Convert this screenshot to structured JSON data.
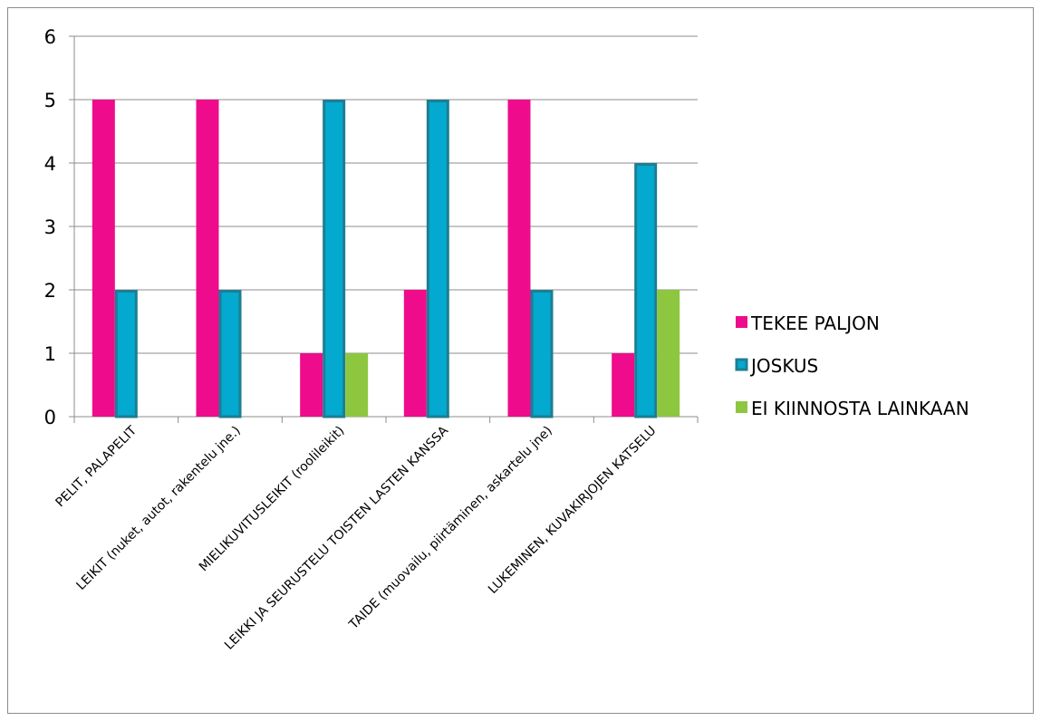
{
  "chart_data": {
    "type": "bar",
    "categories": [
      "PELIT, PALAPELIT",
      "LEIKIT (nuket, autot, rakentelu jne.)",
      "MIELIKUVITUSLEIKIT (roolileikit)",
      "LEIKKI JA SEURUSTELU TOISTEN LASTEN KANSSA",
      "TAIDE (muovailu, piirtäminen, askartelu jne)",
      "LUKEMINEN, KUVAKIRJOJEN KATSELU"
    ],
    "series": [
      {
        "name": "TEKEE PALJON",
        "values": [
          5,
          5,
          1,
          2,
          5,
          1
        ],
        "color": "#ee0c8c",
        "outline": false
      },
      {
        "name": "JOSKUS",
        "values": [
          2,
          2,
          5,
          5,
          2,
          4
        ],
        "color": "#03a9cf",
        "outline": true,
        "outline_color": "#1d7e93"
      },
      {
        "name": "EI KIINNOSTA LAINKAAN",
        "values": [
          0,
          0,
          1,
          0,
          0,
          2
        ],
        "color": "#8dc63f",
        "outline": false
      }
    ],
    "yticks": [
      "0",
      "1",
      "2",
      "3",
      "4",
      "5",
      "6"
    ],
    "ylim": [
      0,
      6
    ],
    "grid": true,
    "legend": "right",
    "title": "",
    "xlabel": "",
    "ylabel": ""
  }
}
